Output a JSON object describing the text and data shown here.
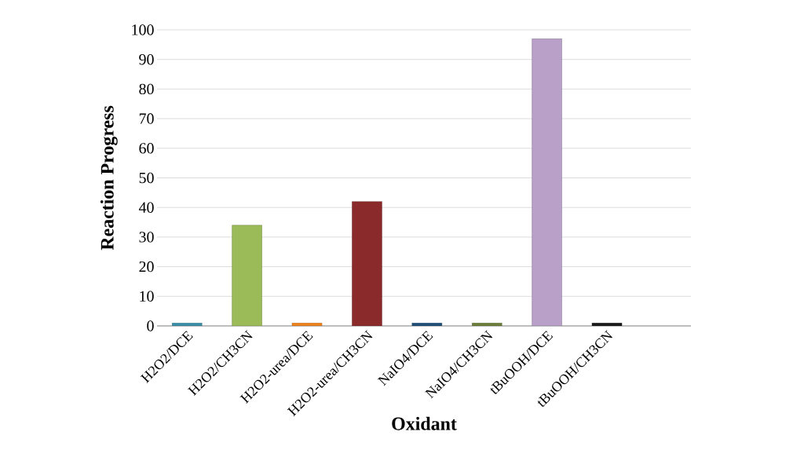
{
  "chart_data": {
    "type": "bar",
    "xlabel": "Oxidant",
    "ylabel": "Reaction Progress",
    "categories": [
      "H2O2/DCE",
      "H2O2/CH3CN",
      "H2O2-urea/DCE",
      "H2O2-urea/CH3CN",
      "NaIO4/DCE",
      "NaIO4/CH3CN",
      "tBuOOH/DCE",
      "tBuOOH/CH3CN"
    ],
    "values": [
      1,
      34,
      1,
      42,
      1,
      1,
      97,
      1
    ],
    "colors": [
      "#3a8fa8",
      "#9bbb59",
      "#f0821e",
      "#8b2a2a",
      "#1f4e79",
      "#6b7f3a",
      "#b8a0c8",
      "#1a1a1a"
    ],
    "ylim": [
      0,
      100
    ],
    "yticks": [
      0,
      10,
      20,
      30,
      40,
      50,
      60,
      70,
      80,
      90,
      100
    ],
    "grid": "y"
  }
}
